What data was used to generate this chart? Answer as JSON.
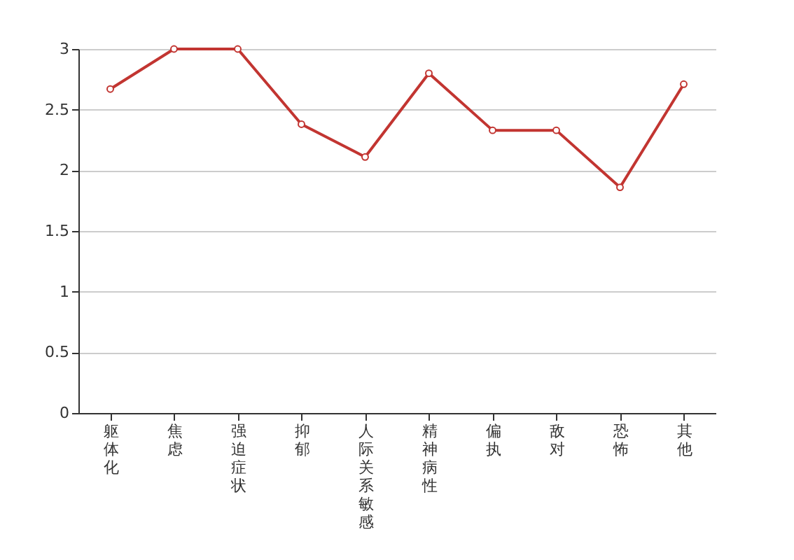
{
  "chart_data": {
    "type": "line",
    "categories": [
      "躯体化",
      "焦虑",
      "强迫症状",
      "抑郁",
      "人际关系敏感",
      "精神病性",
      "偏执",
      "敌对",
      "恐怖",
      "其他"
    ],
    "values": [
      2.67,
      3,
      3,
      2.38,
      2.11,
      2.8,
      2.33,
      2.33,
      1.86,
      2.71
    ],
    "color": "#c23531",
    "ylim": [
      0,
      3
    ],
    "yticks": [
      0,
      0.5,
      1,
      1.5,
      2,
      2.5,
      3
    ],
    "grid": "y",
    "marker": "circle"
  }
}
